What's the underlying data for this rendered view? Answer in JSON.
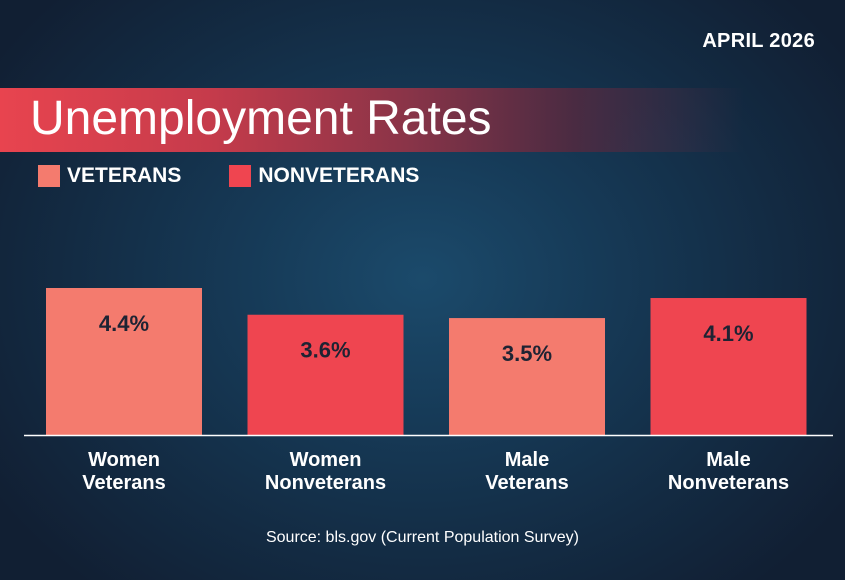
{
  "header": {
    "date": "APRIL 2026",
    "title": "Unemployment Rates"
  },
  "colors": {
    "veterans": "#f47b6e",
    "nonveterans": "#ef4550",
    "value_text": "#1e2333"
  },
  "legend": {
    "veterans_label": "VETERANS",
    "nonveterans_label": "NONVETERANS"
  },
  "chart_data": {
    "type": "bar",
    "title": "Unemployment Rates",
    "categories": [
      [
        "Women",
        "Veterans"
      ],
      [
        "Women",
        "Nonveterans"
      ],
      [
        "Male",
        "Veterans"
      ],
      [
        "Male",
        "Nonveterans"
      ]
    ],
    "values": [
      4.4,
      3.6,
      3.5,
      4.1
    ],
    "value_labels": [
      "4.4%",
      "3.6%",
      "3.5%",
      "4.1%"
    ],
    "groups": [
      "veterans",
      "nonveterans",
      "veterans",
      "nonveterans"
    ],
    "legend": [
      "VETERANS",
      "NONVETERANS"
    ],
    "ylim": [
      0,
      4.4
    ],
    "grid": false,
    "legend_position": "top-left"
  },
  "footer": {
    "source": "Source: bls.gov (Current Population Survey)"
  }
}
